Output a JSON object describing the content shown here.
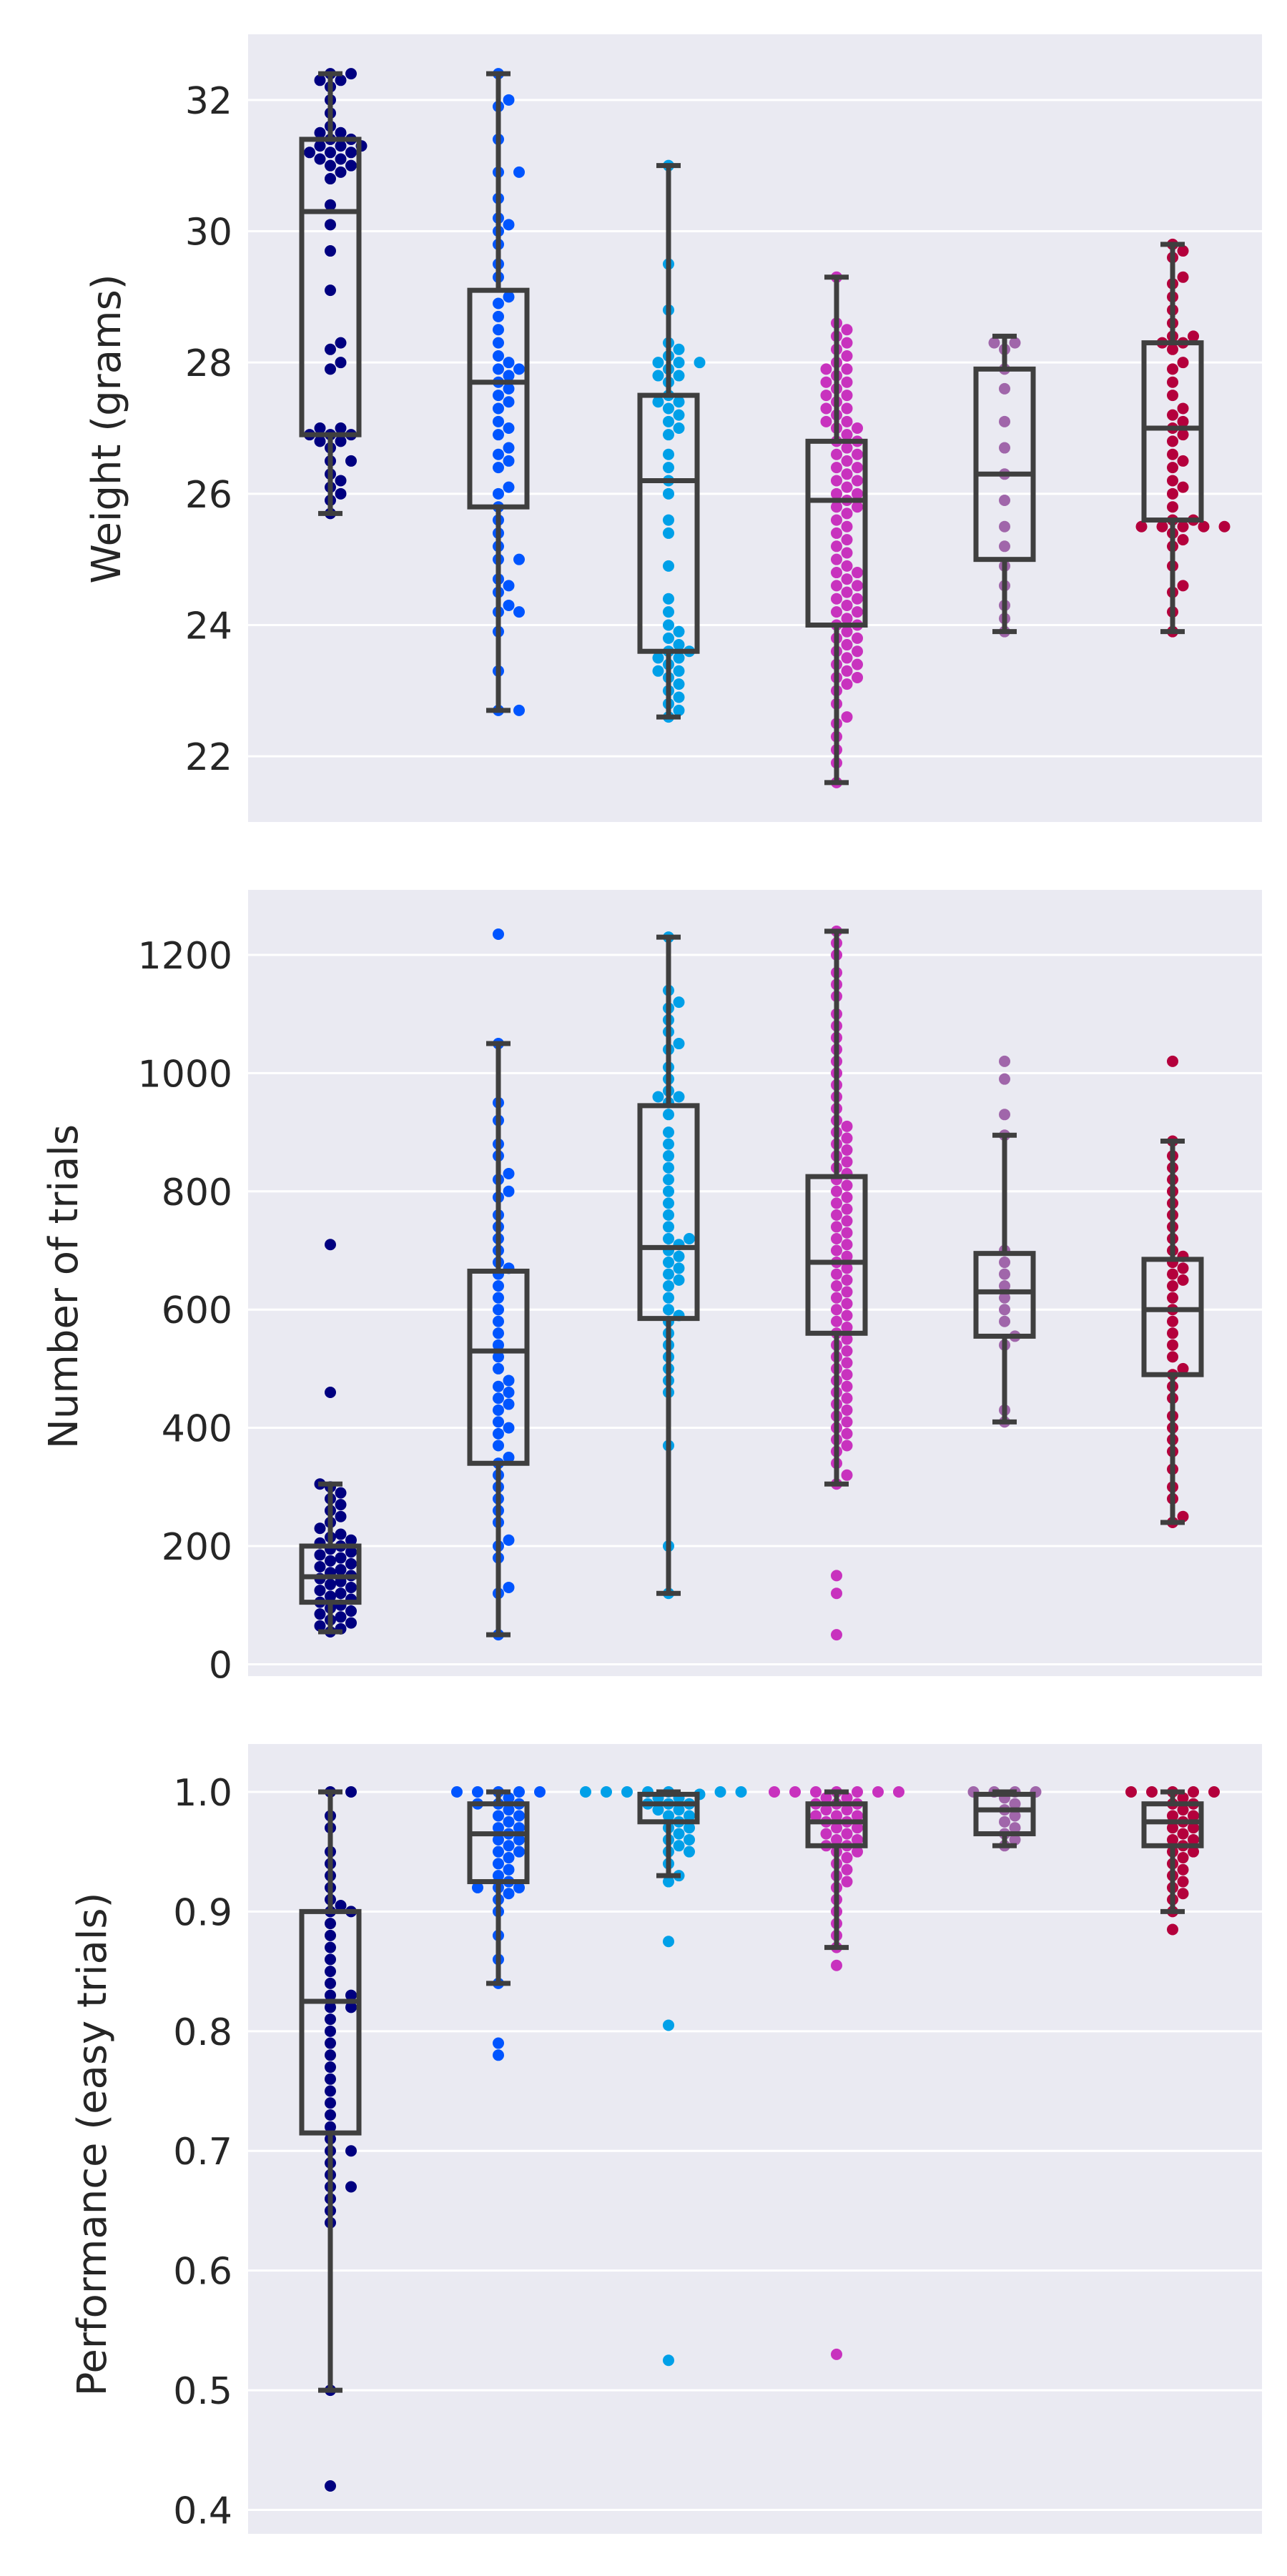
{
  "chart_data": [
    {
      "type": "box",
      "ylabel": "Weight (grams)",
      "ylim": [
        21.0,
        33.0
      ],
      "yticks": [
        22,
        24,
        26,
        28,
        30,
        32
      ],
      "grid": true,
      "groups": [
        {
          "color": "#000080",
          "box": {
            "whisker_low": 25.7,
            "q1": 26.9,
            "median": 30.3,
            "q3": 31.4,
            "whisker_high": 32.4
          },
          "points": [
            32.4,
            32.4,
            32.3,
            32.3,
            32.2,
            32.0,
            31.8,
            31.6,
            31.5,
            31.5,
            31.4,
            31.4,
            31.3,
            31.3,
            31.3,
            31.2,
            31.2,
            31.2,
            31.1,
            31.1,
            31.0,
            31.0,
            30.9,
            30.8,
            30.4,
            30.1,
            29.7,
            29.1,
            28.3,
            28.2,
            28.0,
            27.9,
            27.0,
            27.0,
            26.9,
            26.9,
            26.9,
            26.8,
            26.8,
            26.7,
            26.5,
            26.5,
            26.3,
            26.2,
            26.1,
            26.0,
            25.9,
            25.7
          ]
        },
        {
          "color": "#0055ff",
          "box": {
            "whisker_low": 22.7,
            "q1": 25.8,
            "median": 27.7,
            "q3": 29.1,
            "whisker_high": 32.4
          },
          "points": [
            32.4,
            32.0,
            31.9,
            31.4,
            30.9,
            30.9,
            30.5,
            30.2,
            30.1,
            30.0,
            29.8,
            29.5,
            29.3,
            29.0,
            28.9,
            28.7,
            28.5,
            28.3,
            28.1,
            28.0,
            27.9,
            27.9,
            27.8,
            27.7,
            27.6,
            27.5,
            27.4,
            27.3,
            27.1,
            27.0,
            26.9,
            26.7,
            26.6,
            26.5,
            26.4,
            26.1,
            26.0,
            25.8,
            25.6,
            25.4,
            25.2,
            25.0,
            25.0,
            24.7,
            24.6,
            24.5,
            24.3,
            24.2,
            24.2,
            23.9,
            23.3,
            22.7,
            22.7
          ]
        },
        {
          "color": "#00a0e8",
          "box": {
            "whisker_low": 22.6,
            "q1": 23.6,
            "median": 26.2,
            "q3": 27.5,
            "whisker_high": 31.0
          },
          "points": [
            31.0,
            29.5,
            28.8,
            28.3,
            28.2,
            28.1,
            28.0,
            28.0,
            28.0,
            27.9,
            27.8,
            27.8,
            27.7,
            27.5,
            27.4,
            27.4,
            27.3,
            27.2,
            27.1,
            27.0,
            26.9,
            26.6,
            26.4,
            26.2,
            26.0,
            25.6,
            25.4,
            24.9,
            24.4,
            24.2,
            24.0,
            23.9,
            23.8,
            23.7,
            23.6,
            23.6,
            23.5,
            23.5,
            23.4,
            23.3,
            23.3,
            23.2,
            23.1,
            23.0,
            22.9,
            22.8,
            22.7,
            22.6
          ]
        },
        {
          "color": "#c832be",
          "box": {
            "whisker_low": 21.6,
            "q1": 24.0,
            "median": 25.9,
            "q3": 26.8,
            "whisker_high": 29.3
          },
          "points": [
            29.3,
            28.6,
            28.5,
            28.4,
            28.3,
            28.2,
            28.1,
            28.0,
            27.9,
            27.9,
            27.8,
            27.7,
            27.7,
            27.6,
            27.5,
            27.5,
            27.4,
            27.3,
            27.3,
            27.2,
            27.1,
            27.1,
            27.0,
            27.0,
            26.9,
            26.8,
            26.8,
            26.7,
            26.6,
            26.6,
            26.5,
            26.4,
            26.4,
            26.3,
            26.2,
            26.2,
            26.1,
            26.0,
            26.0,
            25.9,
            25.8,
            25.8,
            25.7,
            25.6,
            25.5,
            25.4,
            25.3,
            25.2,
            25.1,
            25.0,
            24.9,
            24.8,
            24.8,
            24.7,
            24.6,
            24.6,
            24.5,
            24.4,
            24.4,
            24.3,
            24.2,
            24.2,
            24.1,
            24.0,
            24.0,
            23.9,
            23.8,
            23.8,
            23.7,
            23.6,
            23.6,
            23.5,
            23.4,
            23.4,
            23.3,
            23.2,
            23.2,
            23.1,
            23.0,
            22.8,
            22.6,
            22.5,
            22.3,
            22.1,
            21.9,
            21.6
          ]
        },
        {
          "color": "#a066aa",
          "box": {
            "whisker_low": 23.9,
            "q1": 25.0,
            "median": 26.3,
            "q3": 27.9,
            "whisker_high": 28.4
          },
          "points": [
            28.3,
            28.3,
            28.2,
            27.9,
            27.6,
            27.1,
            26.7,
            26.3,
            25.9,
            25.5,
            25.2,
            24.9,
            24.6,
            24.3,
            24.1,
            23.9
          ]
        },
        {
          "color": "#b4003c",
          "box": {
            "whisker_low": 23.9,
            "q1": 25.6,
            "median": 27.0,
            "q3": 28.3,
            "whisker_high": 29.8
          },
          "points": [
            29.8,
            29.7,
            29.6,
            29.3,
            29.2,
            29.0,
            28.8,
            28.6,
            28.4,
            28.4,
            28.3,
            28.3,
            28.2,
            28.0,
            27.9,
            27.7,
            27.5,
            27.3,
            27.2,
            27.1,
            27.0,
            26.9,
            26.8,
            26.6,
            26.5,
            26.4,
            26.2,
            26.1,
            26.0,
            25.8,
            25.6,
            25.6,
            25.5,
            25.5,
            25.5,
            25.5,
            25.5,
            25.4,
            25.3,
            25.2,
            24.9,
            24.6,
            24.5,
            24.2,
            23.9
          ]
        }
      ]
    },
    {
      "type": "box",
      "ylabel": "Number of trials",
      "ylim": [
        -20,
        1310
      ],
      "yticks": [
        0,
        200,
        400,
        600,
        800,
        1000,
        1200
      ],
      "grid": true,
      "groups": [
        {
          "color": "#000080",
          "box": {
            "whisker_low": 55,
            "q1": 105,
            "median": 148,
            "q3": 200,
            "whisker_high": 305
          },
          "points": [
            710,
            460,
            305,
            300,
            290,
            280,
            270,
            260,
            250,
            240,
            230,
            220,
            215,
            210,
            205,
            200,
            195,
            190,
            185,
            180,
            175,
            170,
            165,
            160,
            155,
            150,
            145,
            140,
            135,
            130,
            125,
            120,
            115,
            110,
            105,
            100,
            95,
            90,
            85,
            80,
            75,
            70,
            65,
            60,
            55
          ]
        },
        {
          "color": "#0055ff",
          "box": {
            "whisker_low": 50,
            "q1": 340,
            "median": 530,
            "q3": 665,
            "whisker_high": 1050
          },
          "points": [
            1235,
            1050,
            950,
            920,
            880,
            860,
            830,
            820,
            800,
            790,
            760,
            740,
            720,
            700,
            680,
            670,
            660,
            640,
            620,
            600,
            580,
            560,
            540,
            520,
            500,
            480,
            470,
            460,
            450,
            440,
            430,
            410,
            400,
            390,
            370,
            350,
            340,
            320,
            300,
            280,
            260,
            240,
            210,
            200,
            180,
            130,
            120,
            50
          ]
        },
        {
          "color": "#00a0e8",
          "box": {
            "whisker_low": 120,
            "q1": 585,
            "median": 705,
            "q3": 945,
            "whisker_high": 1230
          },
          "points": [
            1230,
            1140,
            1120,
            1110,
            1090,
            1070,
            1050,
            1040,
            1010,
            990,
            970,
            960,
            960,
            950,
            930,
            900,
            880,
            860,
            840,
            820,
            800,
            780,
            760,
            740,
            720,
            720,
            710,
            700,
            690,
            680,
            670,
            660,
            650,
            640,
            620,
            600,
            590,
            580,
            560,
            540,
            520,
            500,
            480,
            460,
            370,
            200,
            120
          ]
        },
        {
          "color": "#c832be",
          "box": {
            "whisker_low": 305,
            "q1": 560,
            "median": 680,
            "q3": 825,
            "whisker_high": 1240
          },
          "points": [
            1240,
            1220,
            1200,
            1170,
            1150,
            1130,
            1100,
            1080,
            1060,
            1040,
            1020,
            1000,
            980,
            960,
            940,
            920,
            910,
            900,
            890,
            880,
            870,
            860,
            850,
            840,
            830,
            820,
            810,
            800,
            790,
            780,
            770,
            760,
            750,
            740,
            730,
            720,
            710,
            700,
            690,
            680,
            670,
            660,
            650,
            640,
            630,
            620,
            610,
            600,
            590,
            580,
            570,
            560,
            550,
            540,
            530,
            520,
            510,
            500,
            490,
            480,
            470,
            460,
            450,
            440,
            430,
            420,
            410,
            400,
            390,
            380,
            370,
            360,
            340,
            320,
            305,
            150,
            120,
            50
          ]
        },
        {
          "color": "#a066aa",
          "box": {
            "whisker_low": 410,
            "q1": 555,
            "median": 630,
            "q3": 695,
            "whisker_high": 895
          },
          "points": [
            1020,
            990,
            930,
            895,
            700,
            680,
            660,
            640,
            620,
            600,
            580,
            555,
            540,
            430,
            410
          ]
        },
        {
          "color": "#b4003c",
          "box": {
            "whisker_low": 240,
            "q1": 490,
            "median": 600,
            "q3": 685,
            "whisker_high": 885
          },
          "points": [
            1020,
            885,
            860,
            840,
            820,
            800,
            780,
            760,
            740,
            720,
            700,
            690,
            680,
            670,
            660,
            650,
            640,
            620,
            600,
            580,
            560,
            540,
            520,
            500,
            490,
            470,
            450,
            420,
            400,
            380,
            360,
            330,
            300,
            280,
            250,
            240
          ]
        }
      ]
    },
    {
      "type": "box",
      "ylabel": "Performance (easy trials)",
      "ylim": [
        0.38,
        1.04
      ],
      "yticks": [
        0.4,
        0.5,
        0.6,
        0.7,
        0.8,
        0.9,
        1.0
      ],
      "grid": true,
      "groups": [
        {
          "color": "#000080",
          "box": {
            "whisker_low": 0.5,
            "q1": 0.715,
            "median": 0.825,
            "q3": 0.9,
            "whisker_high": 1.0
          },
          "points": [
            1.0,
            1.0,
            0.98,
            0.97,
            0.95,
            0.94,
            0.93,
            0.92,
            0.91,
            0.905,
            0.9,
            0.9,
            0.89,
            0.88,
            0.87,
            0.86,
            0.85,
            0.84,
            0.83,
            0.83,
            0.82,
            0.82,
            0.81,
            0.8,
            0.79,
            0.78,
            0.77,
            0.76,
            0.75,
            0.74,
            0.73,
            0.72,
            0.71,
            0.7,
            0.7,
            0.69,
            0.68,
            0.67,
            0.67,
            0.66,
            0.65,
            0.64,
            0.5,
            0.42
          ]
        },
        {
          "color": "#0055ff",
          "box": {
            "whisker_low": 0.84,
            "q1": 0.925,
            "median": 0.965,
            "q3": 0.99,
            "whisker_high": 1.0
          },
          "points": [
            1.0,
            1.0,
            1.0,
            1.0,
            1.0,
            0.995,
            0.99,
            0.99,
            0.99,
            0.985,
            0.98,
            0.98,
            0.975,
            0.97,
            0.97,
            0.965,
            0.96,
            0.96,
            0.955,
            0.95,
            0.95,
            0.945,
            0.94,
            0.935,
            0.93,
            0.925,
            0.92,
            0.92,
            0.92,
            0.915,
            0.91,
            0.9,
            0.88,
            0.86,
            0.84,
            0.79,
            0.78
          ]
        },
        {
          "color": "#00a0e8",
          "box": {
            "whisker_low": 0.93,
            "q1": 0.975,
            "median": 0.99,
            "q3": 0.998,
            "whisker_high": 1.0
          },
          "points": [
            1.0,
            1.0,
            1.0,
            1.0,
            1.0,
            1.0,
            1.0,
            0.998,
            0.995,
            0.995,
            0.99,
            0.99,
            0.99,
            0.985,
            0.985,
            0.98,
            0.98,
            0.975,
            0.97,
            0.97,
            0.965,
            0.96,
            0.96,
            0.955,
            0.95,
            0.95,
            0.94,
            0.93,
            0.925,
            0.875,
            0.805,
            0.525
          ]
        },
        {
          "color": "#c832be",
          "box": {
            "whisker_low": 0.87,
            "q1": 0.955,
            "median": 0.975,
            "q3": 0.99,
            "whisker_high": 1.0
          },
          "points": [
            1.0,
            1.0,
            1.0,
            1.0,
            1.0,
            1.0,
            1.0,
            0.995,
            0.995,
            0.99,
            0.99,
            0.99,
            0.985,
            0.985,
            0.98,
            0.98,
            0.98,
            0.975,
            0.975,
            0.97,
            0.97,
            0.965,
            0.965,
            0.96,
            0.96,
            0.955,
            0.955,
            0.95,
            0.95,
            0.945,
            0.94,
            0.935,
            0.93,
            0.925,
            0.92,
            0.91,
            0.9,
            0.89,
            0.88,
            0.87,
            0.855,
            0.53
          ]
        },
        {
          "color": "#a066aa",
          "box": {
            "whisker_low": 0.955,
            "q1": 0.965,
            "median": 0.985,
            "q3": 0.998,
            "whisker_high": 1.0
          },
          "points": [
            1.0,
            1.0,
            1.0,
            1.0,
            0.995,
            0.99,
            0.985,
            0.98,
            0.975,
            0.97,
            0.965,
            0.96,
            0.955
          ]
        },
        {
          "color": "#b4003c",
          "box": {
            "whisker_low": 0.9,
            "q1": 0.955,
            "median": 0.975,
            "q3": 0.99,
            "whisker_high": 1.0
          },
          "points": [
            1.0,
            1.0,
            1.0,
            1.0,
            1.0,
            0.995,
            0.99,
            0.99,
            0.985,
            0.98,
            0.98,
            0.975,
            0.97,
            0.97,
            0.965,
            0.96,
            0.96,
            0.955,
            0.95,
            0.95,
            0.945,
            0.94,
            0.935,
            0.93,
            0.925,
            0.92,
            0.915,
            0.91,
            0.9,
            0.885
          ]
        }
      ]
    }
  ]
}
